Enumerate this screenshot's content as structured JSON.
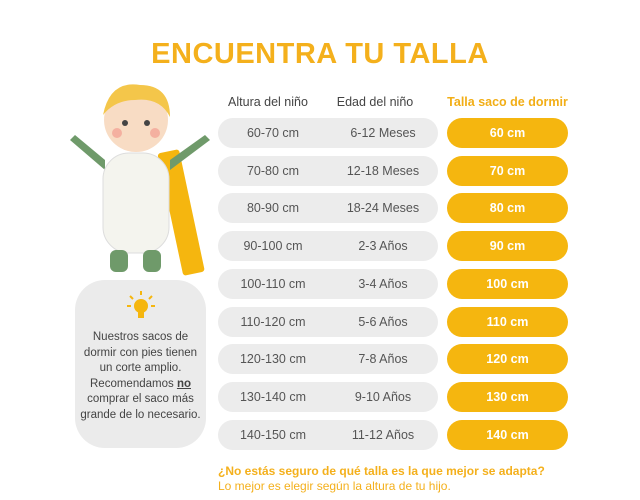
{
  "title": "ENCUENTRA TU TALLA",
  "headers": {
    "height": "Altura del niño",
    "age": "Edad del niño",
    "size": "Talla saco de dormir"
  },
  "rows": [
    {
      "height": "60-70 cm",
      "age": "6-12 Meses",
      "size": "60 cm"
    },
    {
      "height": "70-80 cm",
      "age": "12-18 Meses",
      "size": "70 cm"
    },
    {
      "height": "80-90 cm",
      "age": "18-24 Meses",
      "size": "80 cm"
    },
    {
      "height": "90-100 cm",
      "age": "2-3 Años",
      "size": "90 cm"
    },
    {
      "height": "100-110 cm",
      "age": "3-4 Años",
      "size": "100 cm"
    },
    {
      "height": "110-120 cm",
      "age": "5-6 Años",
      "size": "110 cm"
    },
    {
      "height": "120-130 cm",
      "age": "7-8 Años",
      "size": "120 cm"
    },
    {
      "height": "130-140 cm",
      "age": "9-10 Años",
      "size": "130 cm"
    },
    {
      "height": "140-150 cm",
      "age": "11-12 Años",
      "size": "140 cm"
    }
  ],
  "note": {
    "before": "Nuestros sacos de dormir con pies tienen un corte amplio. Recomendamos ",
    "emph": "no",
    "after": " comprar el saco más grande de lo necesario.",
    "icon": "lightbulb-icon"
  },
  "footer": {
    "question": "¿No estás seguro de qué talla es la que mejor se adapta?",
    "answer": "Lo mejor es elegir según la altura de tu hijo."
  },
  "colors": {
    "accent": "#f5b60f",
    "pill": "#ececec"
  }
}
